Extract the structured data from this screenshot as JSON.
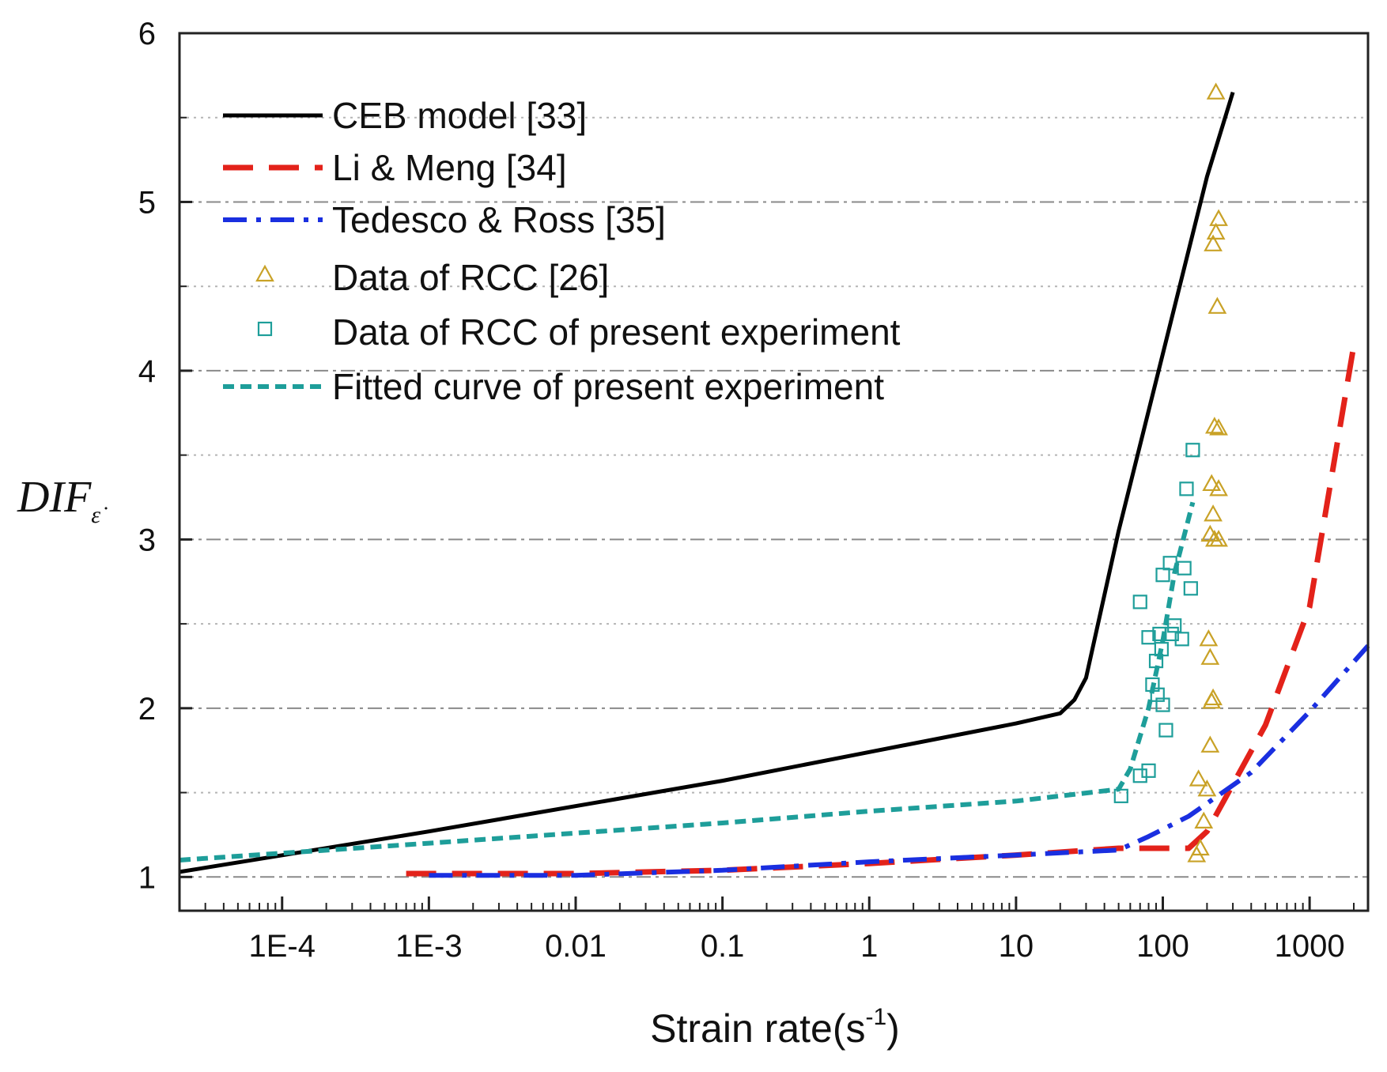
{
  "chart_data": {
    "type": "line",
    "title": "",
    "xlabel": {
      "base": "Strain rate(s",
      "sup": "-1",
      "close": ")"
    },
    "ylabel": {
      "base": "DIF",
      "sub": "ε̇"
    },
    "xscale": "log",
    "xlim": [
      2e-05,
      2500
    ],
    "ylim": [
      0.8,
      6
    ],
    "grid": "horizontal dash-dot (major) and dotted (minor)",
    "legend_position": "top-left",
    "x_ticks": [
      {
        "value": 0.0001,
        "label": "1E-4"
      },
      {
        "value": 0.001,
        "label": "1E-3"
      },
      {
        "value": 0.01,
        "label": "0.01"
      },
      {
        "value": 0.1,
        "label": "0.1"
      },
      {
        "value": 1,
        "label": "1"
      },
      {
        "value": 10,
        "label": "10"
      },
      {
        "value": 100,
        "label": "100"
      },
      {
        "value": 1000,
        "label": "1000"
      }
    ],
    "y_ticks": [
      {
        "value": 1,
        "label": "1"
      },
      {
        "value": 2,
        "label": "2"
      },
      {
        "value": 3,
        "label": "3"
      },
      {
        "value": 4,
        "label": "4"
      },
      {
        "value": 5,
        "label": "5"
      },
      {
        "value": 6,
        "label": "6"
      }
    ],
    "series": [
      {
        "name": "CEB model [33]",
        "kind": "line",
        "style": "solid",
        "color": "#000000",
        "points": [
          [
            2e-05,
            1.03
          ],
          [
            0.001,
            1.27
          ],
          [
            0.1,
            1.57
          ],
          [
            1,
            1.74
          ],
          [
            10,
            1.91
          ],
          [
            20,
            1.97
          ],
          [
            25,
            2.05
          ],
          [
            30,
            2.18
          ],
          [
            50,
            3.05
          ],
          [
            100,
            4.1
          ],
          [
            200,
            5.15
          ],
          [
            300,
            5.65
          ]
        ]
      },
      {
        "name": "Li & Meng [34]",
        "kind": "line",
        "style": "dashed",
        "color": "#e3221a",
        "points": [
          [
            0.0007,
            1.02
          ],
          [
            0.01,
            1.02
          ],
          [
            0.1,
            1.04
          ],
          [
            1,
            1.08
          ],
          [
            10,
            1.13
          ],
          [
            50,
            1.17
          ],
          [
            150,
            1.17
          ],
          [
            200,
            1.27
          ],
          [
            500,
            1.9
          ],
          [
            1000,
            2.6
          ],
          [
            2000,
            4.15
          ]
        ]
      },
      {
        "name": "Tedesco & Ross [35]",
        "kind": "line",
        "style": "dashdot",
        "color": "#1a2fe0",
        "points": [
          [
            0.001,
            1.01
          ],
          [
            0.01,
            1.01
          ],
          [
            0.1,
            1.04
          ],
          [
            1,
            1.09
          ],
          [
            10,
            1.13
          ],
          [
            50,
            1.16
          ],
          [
            80,
            1.24
          ],
          [
            150,
            1.36
          ],
          [
            400,
            1.62
          ],
          [
            1000,
            1.98
          ],
          [
            2500,
            2.37
          ]
        ]
      },
      {
        "name": "Data of RCC [26]",
        "kind": "scatter",
        "marker": "triangle",
        "color": "#c9a227",
        "points": [
          [
            230,
            5.65
          ],
          [
            240,
            4.9
          ],
          [
            230,
            4.82
          ],
          [
            220,
            4.75
          ],
          [
            235,
            4.38
          ],
          [
            225,
            3.67
          ],
          [
            240,
            3.66
          ],
          [
            215,
            3.33
          ],
          [
            240,
            3.3
          ],
          [
            220,
            3.15
          ],
          [
            210,
            3.03
          ],
          [
            225,
            3.0
          ],
          [
            240,
            3.0
          ],
          [
            205,
            2.41
          ],
          [
            210,
            2.3
          ],
          [
            220,
            2.06
          ],
          [
            215,
            2.04
          ],
          [
            210,
            1.78
          ],
          [
            175,
            1.58
          ],
          [
            200,
            1.52
          ],
          [
            190,
            1.33
          ],
          [
            180,
            1.17
          ],
          [
            170,
            1.13
          ]
        ]
      },
      {
        "name": "Data of RCC of present experiment",
        "kind": "scatter",
        "marker": "square",
        "color": "#1e9e9a",
        "points": [
          [
            160,
            3.53
          ],
          [
            145,
            3.3
          ],
          [
            112,
            2.86
          ],
          [
            140,
            2.83
          ],
          [
            100,
            2.79
          ],
          [
            155,
            2.71
          ],
          [
            70,
            2.63
          ],
          [
            120,
            2.49
          ],
          [
            95,
            2.44
          ],
          [
            115,
            2.44
          ],
          [
            135,
            2.41
          ],
          [
            80,
            2.42
          ],
          [
            98,
            2.35
          ],
          [
            90,
            2.28
          ],
          [
            85,
            2.14
          ],
          [
            92,
            2.08
          ],
          [
            100,
            2.02
          ],
          [
            105,
            1.87
          ],
          [
            80,
            1.63
          ],
          [
            70,
            1.6
          ],
          [
            52,
            1.48
          ]
        ]
      },
      {
        "name": "Fitted curve of present experiment",
        "kind": "line",
        "style": "shortdash",
        "color": "#1e9e9a",
        "points": [
          [
            2e-05,
            1.1
          ],
          [
            0.001,
            1.2
          ],
          [
            0.1,
            1.32
          ],
          [
            1,
            1.39
          ],
          [
            10,
            1.45
          ],
          [
            50,
            1.52
          ],
          [
            60,
            1.64
          ],
          [
            80,
            2.0
          ],
          [
            100,
            2.4
          ],
          [
            120,
            2.8
          ],
          [
            160,
            3.22
          ]
        ]
      }
    ]
  }
}
